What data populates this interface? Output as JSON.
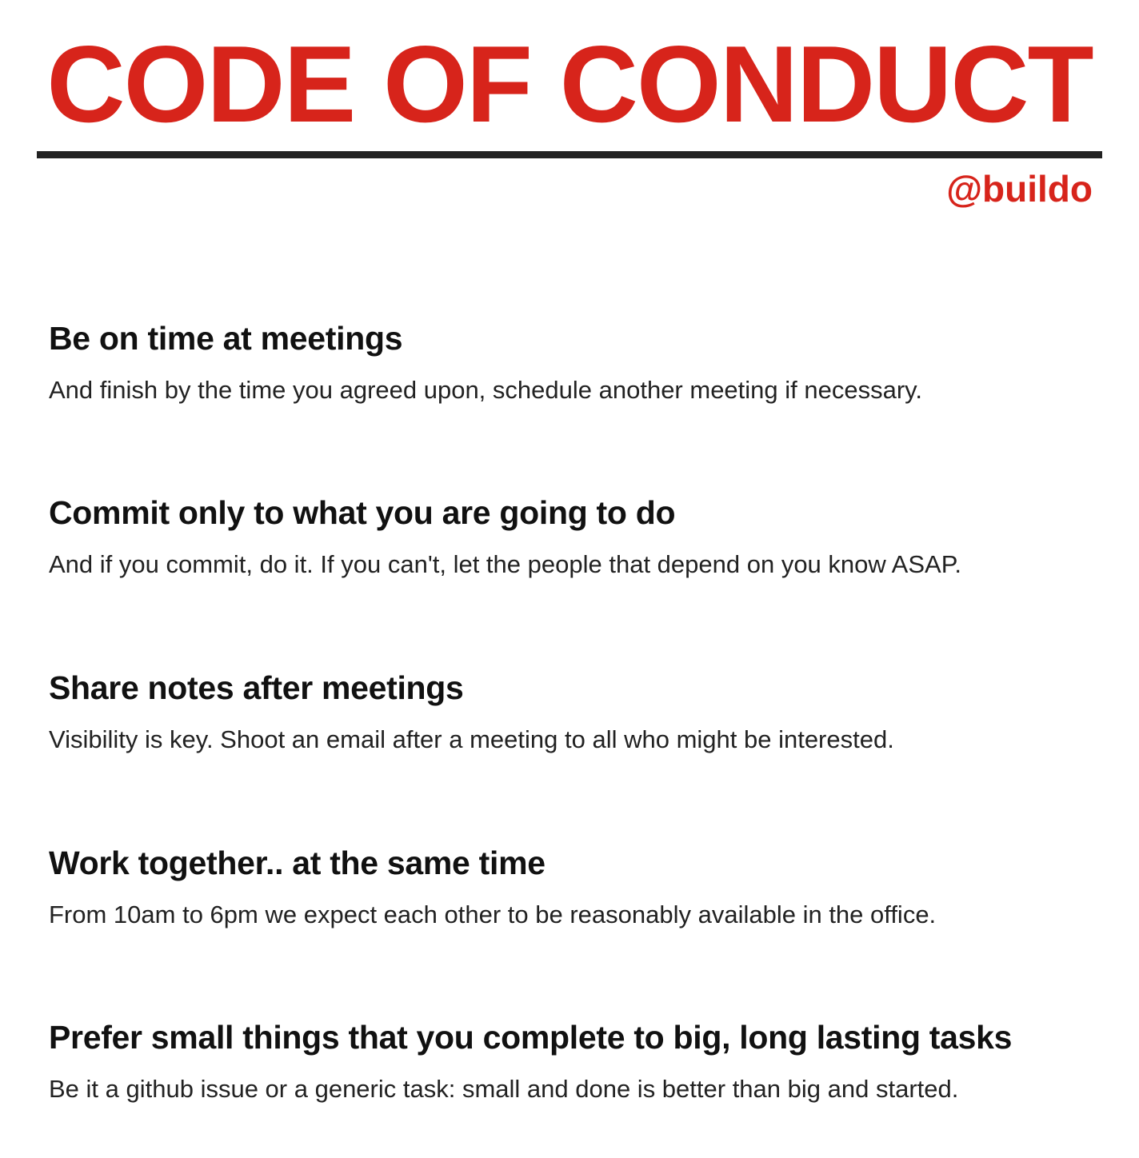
{
  "title": "CODE OF CONDUCT",
  "handle": "@buildo",
  "colors": {
    "accent": "#d7241b",
    "text": "#111111",
    "rule": "#222222"
  },
  "rules": [
    {
      "heading": "Be on time at meetings",
      "text": "And finish by the time you agreed upon, schedule another meeting if necessary."
    },
    {
      "heading": "Commit only to what you are going to do",
      "text": "And if you commit, do it. If you can't, let the people that depend on you know ASAP."
    },
    {
      "heading": "Share notes after meetings",
      "text": "Visibility is key. Shoot an email after a meeting to all who might be interested."
    },
    {
      "heading": "Work together.. at the same time",
      "text": "From 10am to 6pm we expect each other to be reasonably available in the office."
    },
    {
      "heading": "Prefer small things that you complete to big, long lasting tasks",
      "text": "Be it a github issue or a generic task: small and done is better than big and started."
    }
  ]
}
